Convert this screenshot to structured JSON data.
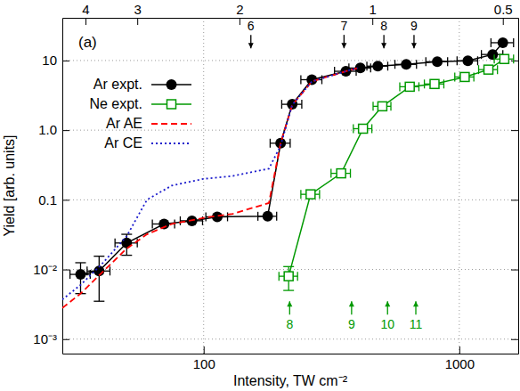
{
  "chart_data": {
    "type": "line",
    "title": "(a)",
    "x_label": "Intensity, TW cm⁻²",
    "y_label": "Yield [arb. units]",
    "log": true,
    "grid": true,
    "legend": "top-left",
    "xlim": [
      28,
      1700
    ],
    "ylim": [
      0.00062,
      41
    ],
    "xticks": [
      100,
      1000
    ],
    "x2ticks": [
      {
        "value": 34.5,
        "label": "4"
      },
      {
        "value": 55,
        "label": "3"
      },
      {
        "value": 138,
        "label": "2"
      },
      {
        "value": 457,
        "label": "1"
      },
      {
        "value": 1480,
        "label": "0.5"
      }
    ],
    "yticks": [
      {
        "value": 0.001,
        "label": "10⁻³"
      },
      {
        "value": 0.01,
        "label": "10⁻²"
      },
      0.1,
      {
        "value": 1,
        "label": "1.0"
      },
      10
    ],
    "series": [
      {
        "name": "Ar expt.",
        "color": "#000000",
        "marker": "circle",
        "line_style": "solid",
        "x": [
          33,
          39,
          50,
          70,
          90,
          113,
          178,
          200,
          222,
          265,
          360,
          410,
          480,
          620,
          820,
          1080,
          1350,
          1480
        ],
        "values": [
          0.0085,
          0.0095,
          0.024,
          0.045,
          0.05,
          0.057,
          0.058,
          0.65,
          2.35,
          5.3,
          7.0,
          7.8,
          8.3,
          8.8,
          9.6,
          9.9,
          12.2,
          18
        ],
        "xerr": [
          3,
          4,
          5,
          7,
          9,
          11,
          15,
          18,
          20,
          25,
          35,
          40,
          45,
          60,
          80,
          100,
          130,
          150
        ],
        "yerr": [
          0.004,
          0.006,
          0.008,
          null,
          null,
          null,
          null,
          null,
          null,
          null,
          null,
          null,
          null,
          null,
          null,
          null,
          null,
          null
        ]
      },
      {
        "name": "Ne expt.",
        "color": "#009900",
        "marker": "square",
        "line_style": "solid",
        "x": [
          215,
          262,
          345,
          420,
          500,
          640,
          800,
          1050,
          1300,
          1500
        ],
        "values": [
          0.008,
          0.12,
          0.24,
          1.05,
          2.2,
          4.2,
          4.6,
          5.8,
          7.4,
          10.5
        ],
        "xerr": [
          18,
          22,
          30,
          35,
          40,
          55,
          70,
          90,
          110,
          130
        ],
        "yerr": [
          0.003,
          null,
          null,
          null,
          null,
          null,
          null,
          null,
          null,
          null
        ]
      },
      {
        "name": "Ar AE",
        "color": "#ff0000",
        "marker": "none",
        "line_style": "dashed",
        "x": [
          28,
          33,
          40,
          50,
          60,
          75,
          100,
          130,
          180,
          200,
          222,
          265,
          350,
          400
        ],
        "values": [
          0.0028,
          0.0045,
          0.009,
          0.02,
          0.032,
          0.045,
          0.055,
          0.063,
          0.09,
          0.65,
          2.3,
          5.0,
          6.8,
          7.8
        ]
      },
      {
        "name": "Ar CE",
        "color": "#1a1acc",
        "marker": "none",
        "line_style": "dotted",
        "x": [
          28,
          33,
          40,
          50,
          60,
          75,
          100,
          130,
          180,
          200,
          222,
          265,
          350,
          400
        ],
        "values": [
          0.0037,
          0.006,
          0.012,
          0.03,
          0.1,
          0.16,
          0.2,
          0.22,
          0.28,
          0.6,
          2.3,
          5.0,
          6.8,
          7.8
        ]
      }
    ],
    "annotations": [
      {
        "text": "6",
        "x": 153,
        "y": 15,
        "color": "#000000",
        "direction": "down"
      },
      {
        "text": "7",
        "x": 354,
        "y": 15,
        "color": "#000000",
        "direction": "down"
      },
      {
        "text": "8",
        "x": 507,
        "y": 15,
        "color": "#000000",
        "direction": "down"
      },
      {
        "text": "9",
        "x": 665,
        "y": 15,
        "color": "#000000",
        "direction": "down"
      },
      {
        "text": "8",
        "x": 217,
        "y": 0.0035,
        "color": "#009900",
        "direction": "up"
      },
      {
        "text": "9",
        "x": 379,
        "y": 0.0035,
        "color": "#009900",
        "direction": "up"
      },
      {
        "text": "10",
        "x": 524,
        "y": 0.0035,
        "color": "#009900",
        "direction": "up"
      },
      {
        "text": "11",
        "x": 676,
        "y": 0.0035,
        "color": "#009900",
        "direction": "up"
      }
    ]
  }
}
